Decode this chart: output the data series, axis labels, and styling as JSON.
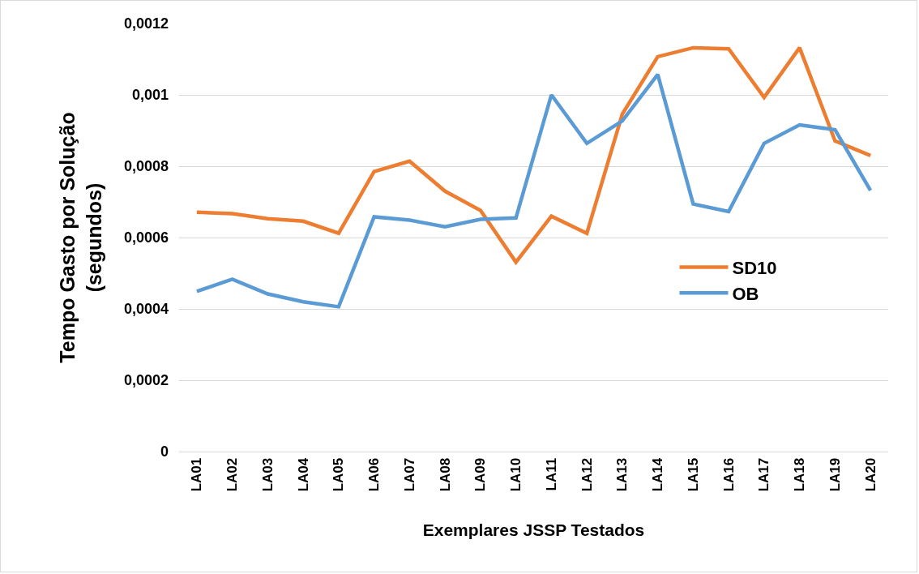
{
  "chart_data": {
    "type": "line",
    "xlabel": "Exemplares JSSP Testados",
    "ylabel": "Tempo Gasto por Solução\n(segundos)",
    "categories": [
      "LA01",
      "LA02",
      "LA03",
      "LA04",
      "LA05",
      "LA06",
      "LA07",
      "LA08",
      "LA09",
      "LA10",
      "LA11",
      "LA12",
      "LA13",
      "LA14",
      "LA15",
      "LA16",
      "LA17",
      "LA18",
      "LA19",
      "LA20"
    ],
    "series": [
      {
        "name": "SD10",
        "color": "#ed7d31",
        "values": [
          0.000671,
          0.000667,
          0.000653,
          0.000646,
          0.000612,
          0.000785,
          0.000814,
          0.00073,
          0.000676,
          0.000531,
          0.00066,
          0.000612,
          0.000946,
          0.001107,
          0.001132,
          0.001129,
          0.000993,
          0.001132,
          0.000871,
          0.00083
        ]
      },
      {
        "name": "OB",
        "color": "#5b9bd5",
        "values": [
          0.000449,
          0.000483,
          0.000442,
          0.00042,
          0.000406,
          0.000658,
          0.000649,
          0.00063,
          0.000651,
          0.000655,
          0.001,
          0.000864,
          0.000927,
          0.001057,
          0.000694,
          0.000673,
          0.000864,
          0.000916,
          0.000902,
          0.000732
        ]
      }
    ],
    "ylim": [
      0,
      0.0012
    ],
    "yticks": [
      {
        "value": 0,
        "label": "0"
      },
      {
        "value": 0.0002,
        "label": "0,0002"
      },
      {
        "value": 0.0004,
        "label": "0,0004"
      },
      {
        "value": 0.0006,
        "label": "0,0006"
      },
      {
        "value": 0.0008,
        "label": "0,0008"
      },
      {
        "value": 0.001,
        "label": "0,001"
      },
      {
        "value": 0.0012,
        "label": "0,0012"
      }
    ],
    "grid": "y",
    "legend": "right",
    "marker": "none",
    "line_style": "solid"
  }
}
